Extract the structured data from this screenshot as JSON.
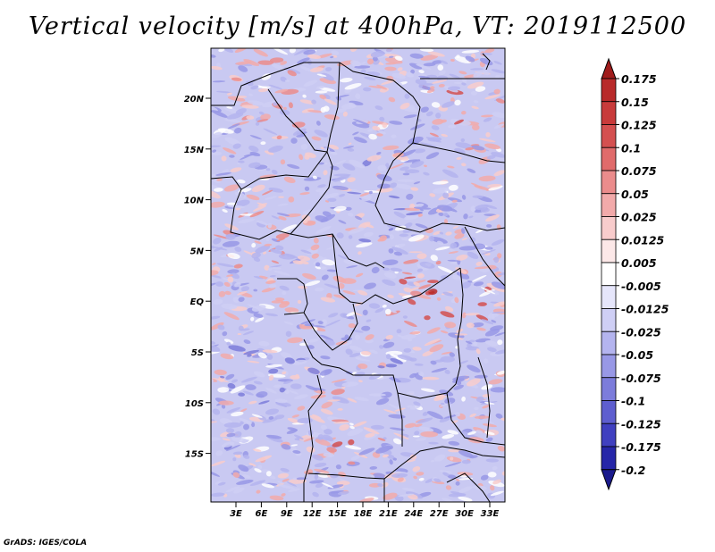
{
  "title": "Vertical velocity [m/s] at 400hPa, VT: 2019112500",
  "credit": "GrADS: IGES/COLA",
  "map": {
    "lat_labels": [
      "20N",
      "15N",
      "10N",
      "5N",
      "EQ",
      "5S",
      "10S",
      "15S"
    ],
    "lon_labels": [
      "3E",
      "6E",
      "9E",
      "12E",
      "15E",
      "18E",
      "21E",
      "24E",
      "27E",
      "30E",
      "33E"
    ]
  },
  "colorbar": {
    "labels": [
      "0.175",
      "0.15",
      "0.125",
      "0.1",
      "0.075",
      "0.05",
      "0.025",
      "0.0125",
      "0.005",
      "-0.005",
      "-0.0125",
      "-0.025",
      "-0.05",
      "-0.075",
      "-0.1",
      "-0.125",
      "-0.175",
      "-0.2"
    ],
    "colors": [
      "#a01c1c",
      "#b82a2a",
      "#c83b3b",
      "#d45050",
      "#e06b6b",
      "#eb8c8c",
      "#f2aaaa",
      "#f8cccc",
      "#fce8e8",
      "#ffffff",
      "#e6e6fb",
      "#cfcff5",
      "#b4b4ef",
      "#9898e6",
      "#7c7cdb",
      "#5e5ecf",
      "#4040c0",
      "#2626a8",
      "#1a1a8c"
    ]
  }
}
